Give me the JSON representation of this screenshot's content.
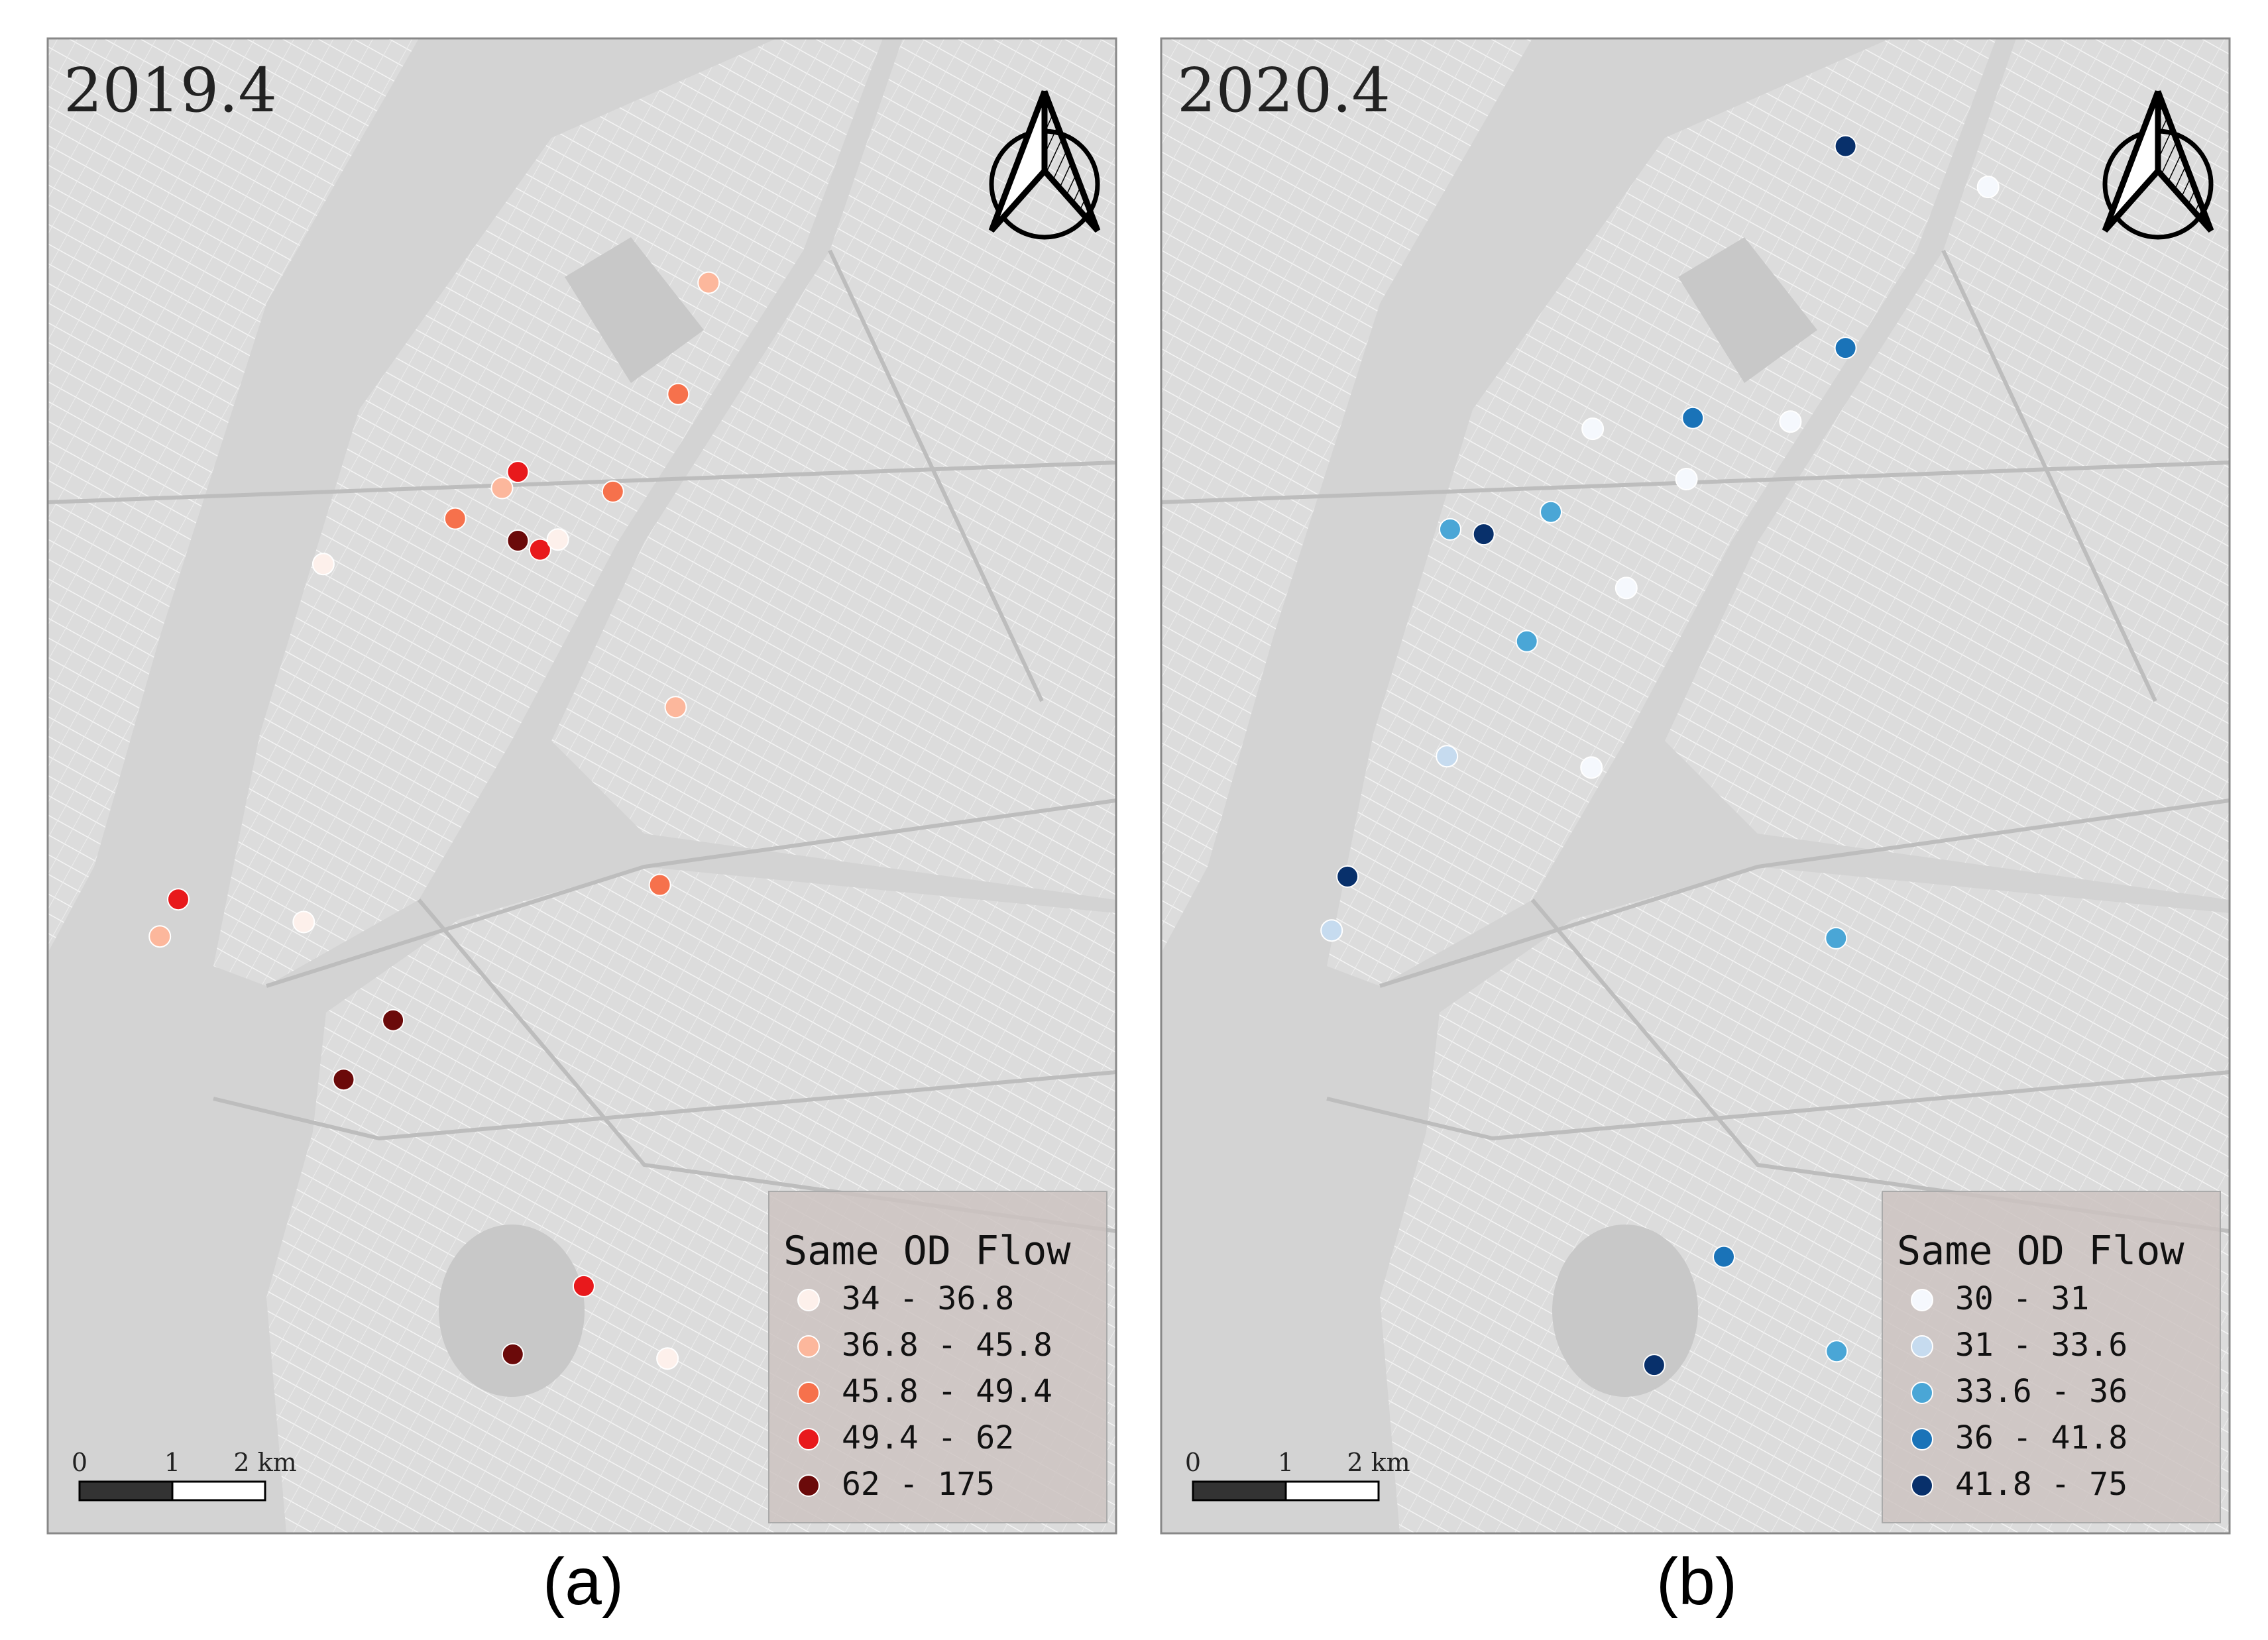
{
  "panels": [
    {
      "id": "a",
      "map_title": "2019.4",
      "caption": "(a)",
      "legend": {
        "title": "Same OD Flow",
        "classes": [
          {
            "label": "34 - 36.8",
            "color": "#fdf0eb"
          },
          {
            "label": "36.8 - 45.8",
            "color": "#fcb79c"
          },
          {
            "label": "45.8 - 49.4",
            "color": "#f6714c"
          },
          {
            "label": "49.4 - 62",
            "color": "#e8191c"
          },
          {
            "label": "62 - 175",
            "color": "#6b0a0a"
          }
        ]
      },
      "scale_bar": {
        "labels": [
          "0",
          "1",
          "2 km"
        ]
      },
      "north_arrow": {
        "icon": "north-arrow-icon"
      },
      "points": [
        {
          "lon": -73.9568,
          "lat": 40.7938,
          "class": 1
        },
        {
          "lon": -73.9616,
          "lat": 40.7752,
          "class": 2
        },
        {
          "lon": -73.9869,
          "lat": 40.7622,
          "class": 3
        },
        {
          "lon": -73.9894,
          "lat": 40.7595,
          "class": 1
        },
        {
          "lon": -73.9719,
          "lat": 40.7589,
          "class": 2
        },
        {
          "lon": -73.9968,
          "lat": 40.7544,
          "class": 2
        },
        {
          "lon": -73.9869,
          "lat": 40.7507,
          "class": 4
        },
        {
          "lon": -73.9834,
          "lat": 40.7492,
          "class": 3
        },
        {
          "lon": -73.9806,
          "lat": 40.7509,
          "class": 0
        },
        {
          "lon": -74.0176,
          "lat": 40.7468,
          "class": 0
        },
        {
          "lon": -73.962,
          "lat": 40.7229,
          "class": 1
        },
        {
          "lon": -73.9645,
          "lat": 40.6932,
          "class": 2
        },
        {
          "lon": -74.0405,
          "lat": 40.6908,
          "class": 3
        },
        {
          "lon": -74.0434,
          "lat": 40.6846,
          "class": 1
        },
        {
          "lon": -74.0207,
          "lat": 40.687,
          "class": 0
        },
        {
          "lon": -74.0066,
          "lat": 40.6706,
          "class": 4
        },
        {
          "lon": -74.0144,
          "lat": 40.6607,
          "class": 4
        },
        {
          "lon": -73.9765,
          "lat": 40.6262,
          "class": 3
        },
        {
          "lon": -73.9633,
          "lat": 40.6141,
          "class": 0
        },
        {
          "lon": -73.9877,
          "lat": 40.6148,
          "class": 4
        }
      ]
    },
    {
      "id": "b",
      "map_title": "2020.4",
      "caption": "(b)",
      "legend": {
        "title": "Same OD Flow",
        "classes": [
          {
            "label": "30 - 31",
            "color": "#f5f8fd"
          },
          {
            "label": "31 - 33.6",
            "color": "#c6dbef"
          },
          {
            "label": "33.6 - 36",
            "color": "#4aa6d6"
          },
          {
            "label": "36 - 41.8",
            "color": "#1a73b8"
          },
          {
            "label": "41.8 - 75",
            "color": "#08306b"
          }
        ]
      },
      "scale_bar": {
        "labels": [
          "0",
          "1",
          "2 km"
        ]
      },
      "north_arrow": {
        "icon": "north-arrow-icon"
      },
      "points": [
        {
          "lon": -73.9531,
          "lat": 40.8166,
          "class": 4
        },
        {
          "lon": -73.9306,
          "lat": 40.8098,
          "class": 0
        },
        {
          "lon": -73.9531,
          "lat": 40.7829,
          "class": 3
        },
        {
          "lon": -73.9772,
          "lat": 40.7712,
          "class": 3
        },
        {
          "lon": -73.993,
          "lat": 40.7694,
          "class": 0
        },
        {
          "lon": -73.9618,
          "lat": 40.7706,
          "class": 0
        },
        {
          "lon": -73.9782,
          "lat": 40.761,
          "class": 0
        },
        {
          "lon": -73.9996,
          "lat": 40.7555,
          "class": 2
        },
        {
          "lon": -74.0155,
          "lat": 40.7526,
          "class": 2
        },
        {
          "lon": -74.0102,
          "lat": 40.7518,
          "class": 4
        },
        {
          "lon": -73.9877,
          "lat": 40.7428,
          "class": 0
        },
        {
          "lon": -74.0034,
          "lat": 40.7339,
          "class": 2
        },
        {
          "lon": -74.016,
          "lat": 40.7147,
          "class": 1
        },
        {
          "lon": -73.9932,
          "lat": 40.7128,
          "class": 0
        },
        {
          "lon": -74.0317,
          "lat": 40.6946,
          "class": 4
        },
        {
          "lon": -74.0342,
          "lat": 40.6856,
          "class": 1
        },
        {
          "lon": -73.9546,
          "lat": 40.6843,
          "class": 2
        },
        {
          "lon": -73.9723,
          "lat": 40.6311,
          "class": 3
        },
        {
          "lon": -73.9545,
          "lat": 40.6153,
          "class": 2
        },
        {
          "lon": -73.9833,
          "lat": 40.613,
          "class": 4
        }
      ]
    }
  ]
}
